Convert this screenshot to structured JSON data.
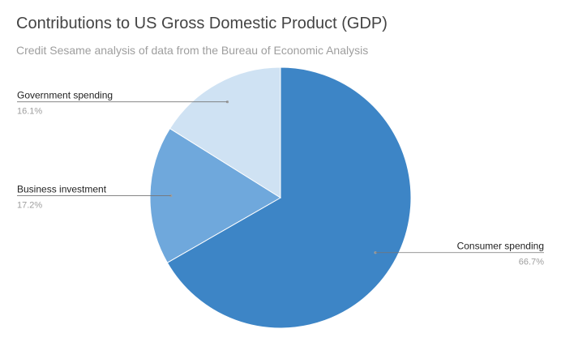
{
  "chart_data": {
    "type": "pie",
    "title": "Contributions to US Gross Domestic Product (GDP)",
    "subtitle": "Credit Sesame analysis of data from the Bureau of Economic Analysis",
    "slices": [
      {
        "label": "Consumer spending",
        "value": 66.7,
        "display": "66.7%",
        "color": "#3d85c6"
      },
      {
        "label": "Business investment",
        "value": 17.2,
        "display": "17.2%",
        "color": "#6fa8dc"
      },
      {
        "label": "Government spending",
        "value": 16.1,
        "display": "16.1%",
        "color": "#cfe2f3"
      }
    ],
    "legend": "none",
    "label_style": "leader-lines"
  }
}
